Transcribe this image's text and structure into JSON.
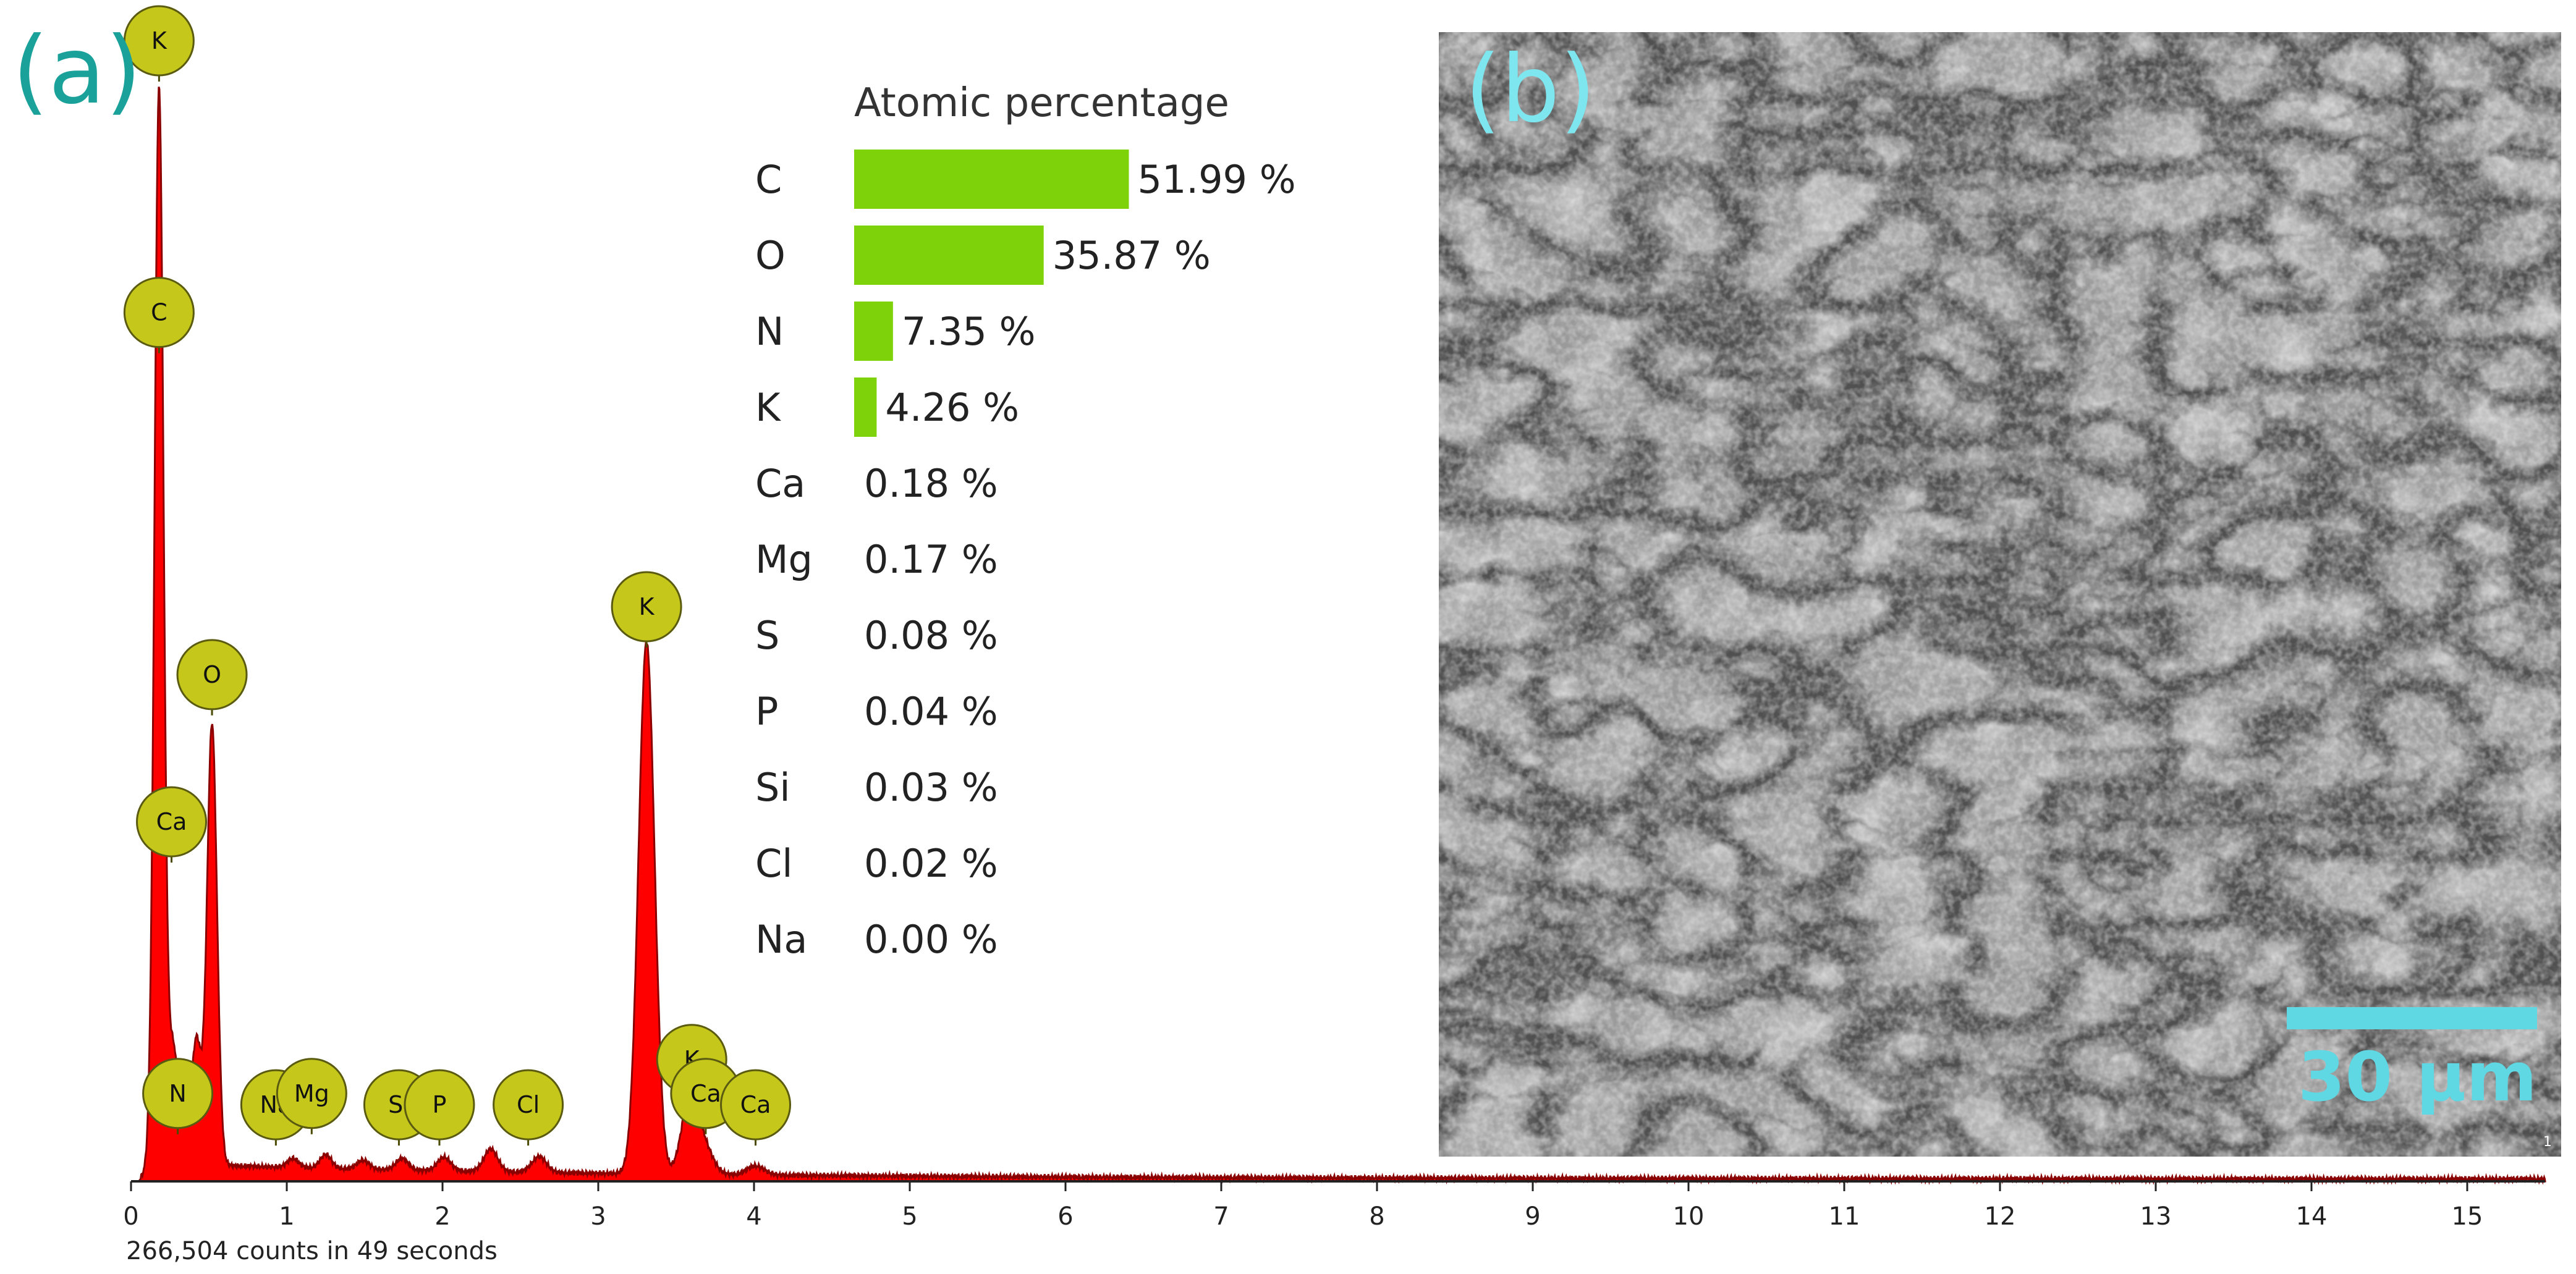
{
  "panel_labels": {
    "a": "(a)",
    "b": "(b)"
  },
  "chart_data": [
    {
      "type": "line",
      "title": "",
      "xlabel": "",
      "ylabel": "",
      "xlim": [
        0,
        15.5
      ],
      "x_ticks": [
        "0",
        "1",
        "2",
        "3",
        "4",
        "5",
        "6",
        "7",
        "8",
        "9",
        "10",
        "11",
        "12",
        "13",
        "14",
        "15"
      ],
      "footer": "266,504 counts in 49 seconds",
      "series_color": "#ff0000",
      "marker_color": "#c5c81b",
      "peaks": [
        {
          "x": 0.18,
          "rel": 0.95
        },
        {
          "x": 0.27,
          "rel": 0.1
        },
        {
          "x": 0.34,
          "rel": 0.035
        },
        {
          "x": 0.42,
          "rel": 0.11
        },
        {
          "x": 0.52,
          "rel": 0.39
        },
        {
          "x": 1.04,
          "rel": 0.008
        },
        {
          "x": 1.25,
          "rel": 0.012
        },
        {
          "x": 1.49,
          "rel": 0.008
        },
        {
          "x": 1.74,
          "rel": 0.01
        },
        {
          "x": 2.01,
          "rel": 0.012
        },
        {
          "x": 2.31,
          "rel": 0.02
        },
        {
          "x": 2.62,
          "rel": 0.014
        },
        {
          "x": 3.31,
          "rel": 0.47
        },
        {
          "x": 3.59,
          "rel": 0.07
        },
        {
          "x": 3.69,
          "rel": 0.02
        },
        {
          "x": 4.01,
          "rel": 0.008
        }
      ],
      "element_markers": [
        {
          "symbol": "K",
          "x": 0.18,
          "rel": 1.0
        },
        {
          "symbol": "C",
          "x": 0.18,
          "rel": 0.76
        },
        {
          "symbol": "O",
          "x": 0.52,
          "rel": 0.44
        },
        {
          "symbol": "Ca",
          "x": 0.26,
          "rel": 0.31
        },
        {
          "symbol": "N",
          "x": 0.3,
          "rel": 0.07
        },
        {
          "symbol": "Na",
          "x": 0.93,
          "rel": 0.06
        },
        {
          "symbol": "Mg",
          "x": 1.16,
          "rel": 0.07
        },
        {
          "symbol": "Si",
          "x": 1.72,
          "rel": 0.06
        },
        {
          "symbol": "P",
          "x": 1.98,
          "rel": 0.06
        },
        {
          "symbol": "Cl",
          "x": 2.55,
          "rel": 0.06
        },
        {
          "symbol": "K",
          "x": 3.31,
          "rel": 0.5
        },
        {
          "symbol": "K",
          "x": 3.6,
          "rel": 0.1
        },
        {
          "symbol": "Ca",
          "x": 3.69,
          "rel": 0.07
        },
        {
          "symbol": "Ca",
          "x": 4.01,
          "rel": 0.06
        }
      ]
    },
    {
      "type": "bar",
      "orientation": "horizontal",
      "title": "Atomic percentage",
      "categories": [
        "C",
        "O",
        "N",
        "K",
        "Ca",
        "Mg",
        "S",
        "P",
        "Si",
        "Cl",
        "Na"
      ],
      "values": [
        51.99,
        35.87,
        7.35,
        4.26,
        0.18,
        0.17,
        0.08,
        0.04,
        0.03,
        0.02,
        0.0
      ],
      "value_labels": [
        "51.99 %",
        "35.87 %",
        "7.35 %",
        "4.26 %",
        "0.18 %",
        "0.17 %",
        "0.08 %",
        "0.04 %",
        "0.03 %",
        "0.02 %",
        "0.00 %"
      ],
      "bar_color": "#7ed20a"
    }
  ],
  "sem_image": {
    "scale_bar": "30 µm",
    "corner_mark": "1"
  }
}
